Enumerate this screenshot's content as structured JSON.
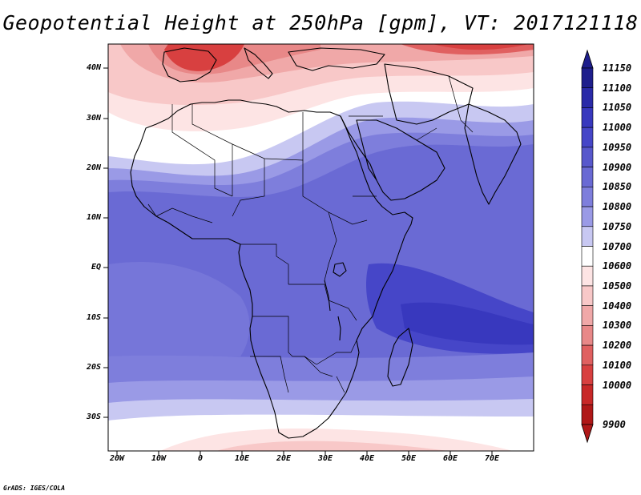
{
  "title": "Geopotential Height at 250hPa [gpm], VT: 2017121118",
  "footer": "GrADS: IGES/COLA",
  "axes": {
    "lat_labels": [
      "40N",
      "30N",
      "20N",
      "10N",
      "EQ",
      "10S",
      "20S",
      "30S"
    ],
    "lon_labels": [
      "20W",
      "10W",
      "0",
      "10E",
      "20E",
      "30E",
      "40E",
      "50E",
      "60E",
      "70E"
    ]
  },
  "colorbar": {
    "labels": [
      "11150",
      "11100",
      "11050",
      "11000",
      "10950",
      "10900",
      "10850",
      "10800",
      "10750",
      "10700",
      "10600",
      "10500",
      "10400",
      "10300",
      "10200",
      "10100",
      "10000",
      "9900"
    ],
    "colors": [
      "#1e1e8c",
      "#2a2aa8",
      "#3838be",
      "#4646c8",
      "#5858cc",
      "#6a6ad4",
      "#7e7edc",
      "#9a9ae6",
      "#c8c8f2",
      "#ffffff",
      "#fde4e4",
      "#f8c8c8",
      "#f0a8a8",
      "#e88888",
      "#e06060",
      "#d84040",
      "#c82828",
      "#b01818"
    ]
  },
  "chart_data": {
    "type": "map",
    "variable": "Geopotential Height at 250hPa",
    "units": "gpm",
    "valid_time": "2017121118",
    "lon_range": [
      -22,
      80
    ],
    "lat_range": [
      -36,
      45
    ],
    "contour_levels": [
      9900,
      10000,
      10100,
      10200,
      10300,
      10400,
      10500,
      10600,
      10700,
      10750,
      10800,
      10850,
      10900,
      10950,
      11000,
      11050,
      11100,
      11150
    ]
  }
}
